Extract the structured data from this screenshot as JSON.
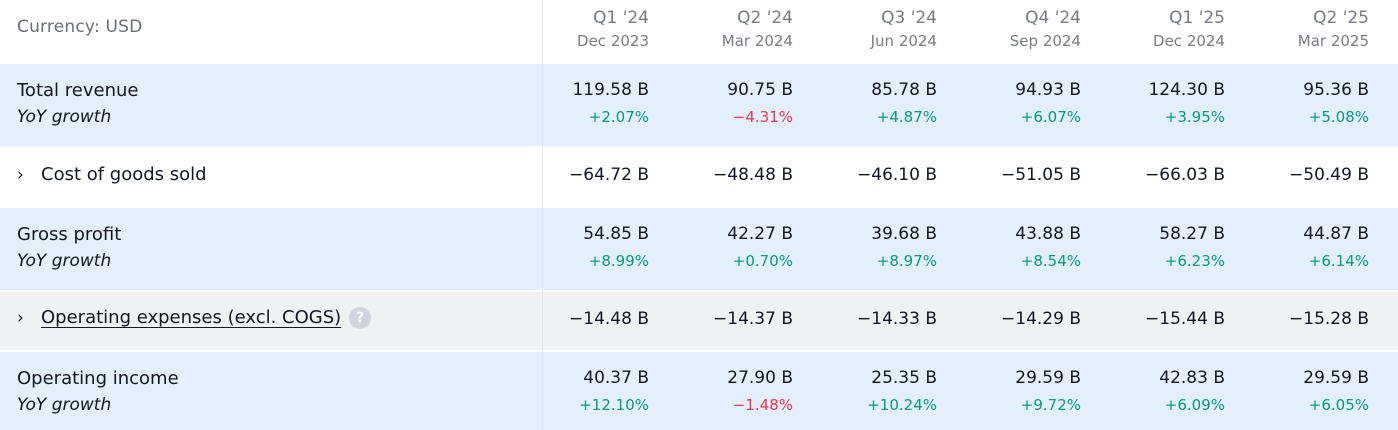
{
  "header": {
    "currency_label": "Currency: USD",
    "periods": [
      {
        "quarter": "Q1 '24",
        "date": "Dec 2023"
      },
      {
        "quarter": "Q2 '24",
        "date": "Mar 2024"
      },
      {
        "quarter": "Q3 '24",
        "date": "Jun 2024"
      },
      {
        "quarter": "Q4 '24",
        "date": "Sep 2024"
      },
      {
        "quarter": "Q1 '25",
        "date": "Dec 2024"
      },
      {
        "quarter": "Q2 '25",
        "date": "Mar 2025"
      }
    ]
  },
  "rows": {
    "total_revenue": {
      "label": "Total revenue",
      "sub_label": "YoY growth",
      "values": [
        "119.58 B",
        "90.75 B",
        "85.78 B",
        "94.93 B",
        "124.30 B",
        "95.36 B"
      ],
      "growth": [
        "+2.07%",
        "−4.31%",
        "+4.87%",
        "+6.07%",
        "+3.95%",
        "+5.08%"
      ]
    },
    "cogs": {
      "chevron": "›",
      "label": "Cost of goods sold",
      "values": [
        "−64.72 B",
        "−48.48 B",
        "−46.10 B",
        "−51.05 B",
        "−66.03 B",
        "−50.49 B"
      ]
    },
    "gross_profit": {
      "label": "Gross profit",
      "sub_label": "YoY growth",
      "values": [
        "54.85 B",
        "42.27 B",
        "39.68 B",
        "43.88 B",
        "58.27 B",
        "44.87 B"
      ],
      "growth": [
        "+8.99%",
        "+0.70%",
        "+8.97%",
        "+8.54%",
        "+6.23%",
        "+6.14%"
      ]
    },
    "opex": {
      "chevron": "›",
      "label": "Operating expenses (excl. COGS)",
      "help_icon": "?",
      "values": [
        "−14.48 B",
        "−14.37 B",
        "−14.33 B",
        "−14.29 B",
        "−15.44 B",
        "−15.28 B"
      ]
    },
    "operating_income": {
      "label": "Operating income",
      "sub_label": "YoY growth",
      "values": [
        "40.37 B",
        "27.90 B",
        "25.35 B",
        "29.59 B",
        "42.83 B",
        "29.59 B"
      ],
      "growth": [
        "+12.10%",
        "−1.48%",
        "+10.24%",
        "+9.72%",
        "+6.09%",
        "+6.05%"
      ]
    }
  },
  "colors": {
    "positive": "#089981",
    "negative": "#f23645",
    "metric_row_bg": "#e3effd",
    "expense_row_bg": "#f0f1f3"
  }
}
